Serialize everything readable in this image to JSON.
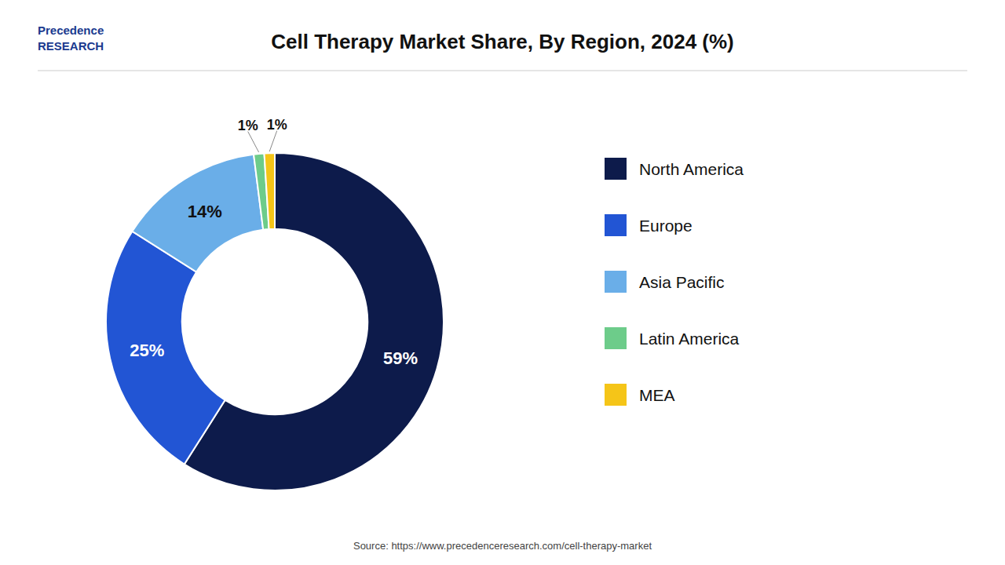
{
  "chart_data": {
    "type": "donut",
    "title": "Cell Therapy Market Share, By Region, 2024 (%)",
    "categories": [
      "North America",
      "Europe",
      "Asia Pacific",
      "Latin America",
      "MEA"
    ],
    "values": [
      59,
      25,
      14,
      1,
      1
    ],
    "value_labels": [
      "59%",
      "25%",
      "14%",
      "1%",
      "1%"
    ],
    "colors": [
      "#0d1b4b",
      "#2255d4",
      "#6aaee8",
      "#6dcc8a",
      "#f5c518"
    ],
    "data_labels": true,
    "legend": "right",
    "annotations": [
      "Precedence",
      "RESEARCH",
      "Source: https://www.precedenceresearch.com/cell-therapy-market"
    ]
  }
}
